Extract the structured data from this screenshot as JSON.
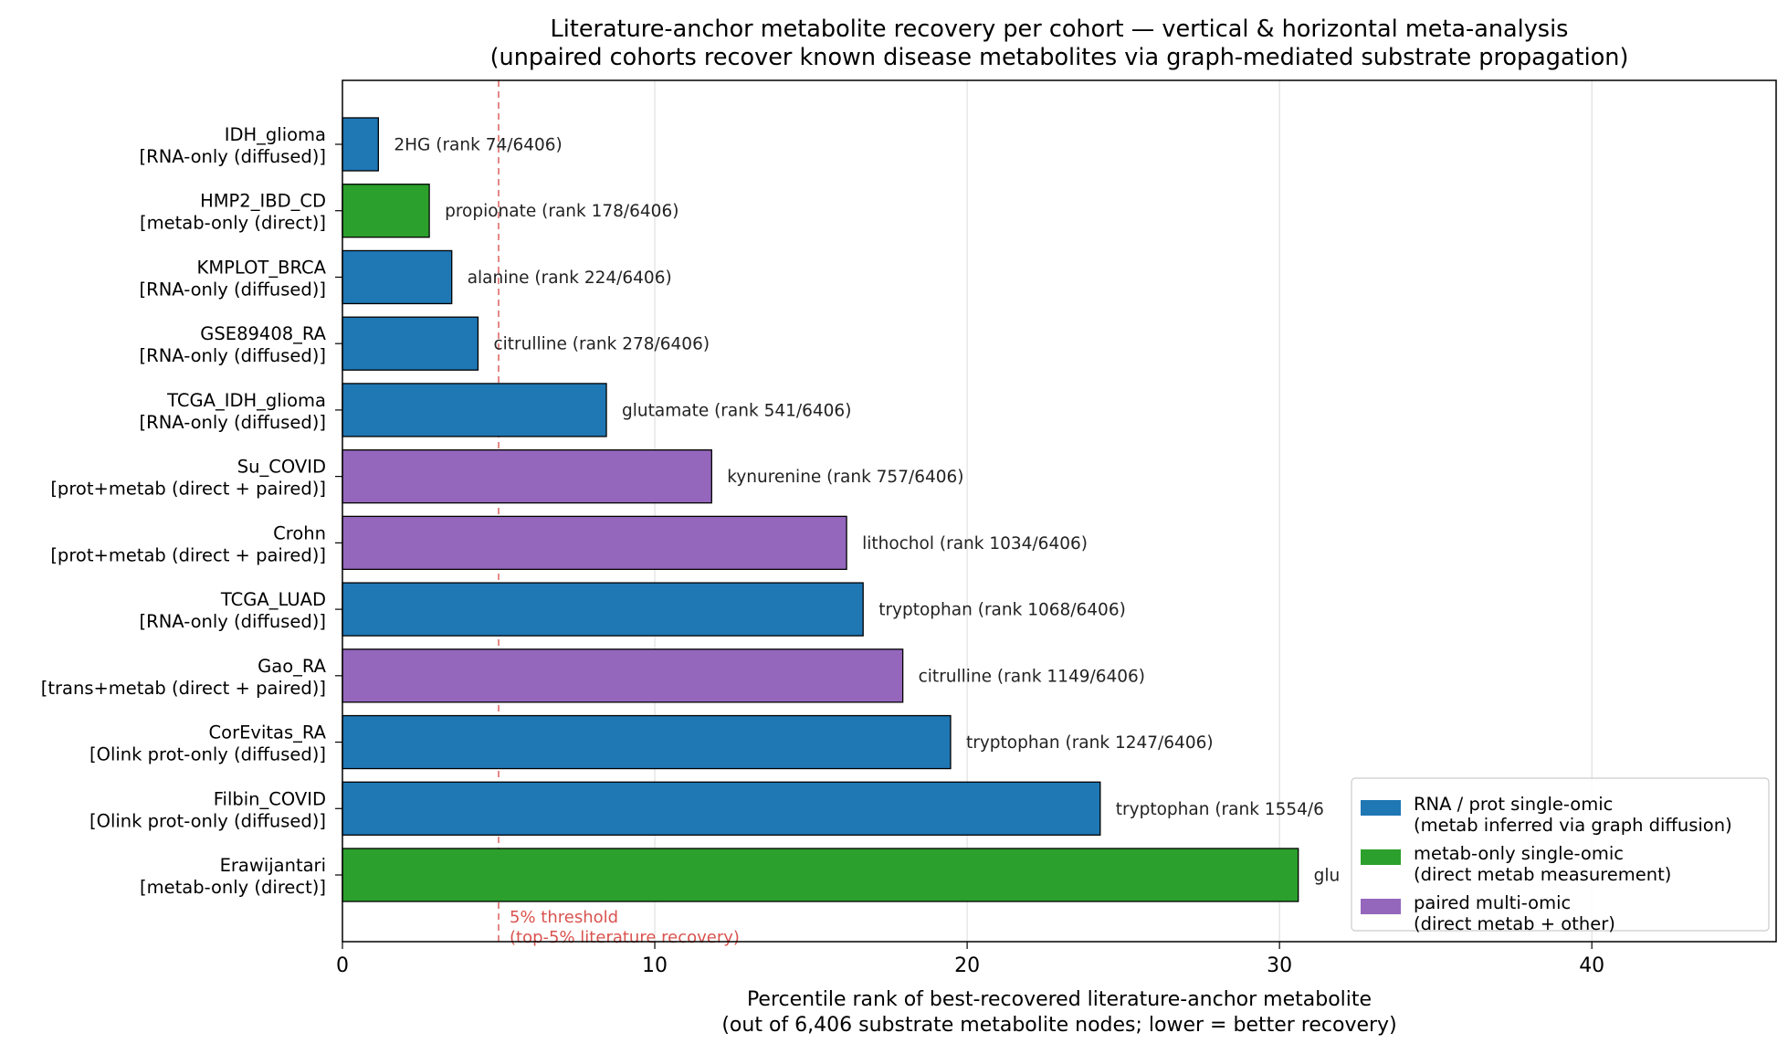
{
  "chart_data": {
    "type": "bar",
    "orientation": "horizontal",
    "title_lines": [
      "Literature-anchor metabolite recovery per cohort — vertical & horizontal meta-analysis",
      "(unpaired cohorts recover known disease metabolites via graph-mediated substrate propagation)"
    ],
    "xlabel_lines": [
      "Percentile rank of best-recovered literature-anchor metabolite",
      "(out of 6,406 substrate metabolite nodes; lower = better recovery)"
    ],
    "ylabel": "",
    "xlim": [
      0,
      45.9
    ],
    "xticks": [
      0,
      10,
      20,
      30,
      40
    ],
    "x_grid": true,
    "bars": [
      {
        "cohort": "IDH_glioma",
        "modality": "[RNA-only (diffused)]",
        "group": "rna_prot",
        "value": 1.15,
        "annotation": "2HG  (rank 74/6406)"
      },
      {
        "cohort": "HMP2_IBD_CD",
        "modality": "[metab-only (direct)]",
        "group": "metab",
        "value": 2.78,
        "annotation": "propionate  (rank 178/6406)"
      },
      {
        "cohort": "KMPLOT_BRCA",
        "modality": "[RNA-only (diffused)]",
        "group": "rna_prot",
        "value": 3.5,
        "annotation": "alanine  (rank 224/6406)"
      },
      {
        "cohort": "GSE89408_RA",
        "modality": "[RNA-only (diffused)]",
        "group": "rna_prot",
        "value": 4.34,
        "annotation": "citrulline  (rank 278/6406)"
      },
      {
        "cohort": "TCGA_IDH_glioma",
        "modality": "[RNA-only (diffused)]",
        "group": "rna_prot",
        "value": 8.45,
        "annotation": "glutamate  (rank 541/6406)"
      },
      {
        "cohort": "Su_COVID",
        "modality": "[prot+metab (direct + paired)]",
        "group": "paired",
        "value": 11.82,
        "annotation": "kynurenine  (rank 757/6406)"
      },
      {
        "cohort": "Crohn",
        "modality": "[prot+metab (direct + paired)]",
        "group": "paired",
        "value": 16.14,
        "annotation": "lithochol  (rank 1034/6406)"
      },
      {
        "cohort": "TCGA_LUAD",
        "modality": "[RNA-only (diffused)]",
        "group": "rna_prot",
        "value": 16.67,
        "annotation": "tryptophan  (rank 1068/6406)"
      },
      {
        "cohort": "Gao_RA",
        "modality": "[trans+metab (direct + paired)]",
        "group": "paired",
        "value": 17.94,
        "annotation": "citrulline  (rank 1149/6406)"
      },
      {
        "cohort": "CorEvitas_RA",
        "modality": "[Olink prot-only (diffused)]",
        "group": "rna_prot",
        "value": 19.47,
        "annotation": "tryptophan  (rank 1247/6406)"
      },
      {
        "cohort": "Filbin_COVID",
        "modality": "[Olink prot-only (diffused)]",
        "group": "rna_prot",
        "value": 24.26,
        "annotation": "tryptophan  (rank 1554/6"
      },
      {
        "cohort": "Erawijantari",
        "modality": "[metab-only (direct)]",
        "group": "metab",
        "value": 30.6,
        "annotation": "glu"
      }
    ],
    "threshold": {
      "value": 5,
      "label_lines": [
        "5% threshold",
        "(top-5% literature recovery)"
      ],
      "color": "#d9534f"
    },
    "legend": {
      "placement": "lower right",
      "entries": [
        {
          "group": "rna_prot",
          "color": "#1f77b4",
          "lines": [
            "RNA / prot single-omic",
            "(metab inferred via graph diffusion)"
          ]
        },
        {
          "group": "metab",
          "color": "#2ca02c",
          "lines": [
            "metab-only single-omic",
            "(direct metab measurement)"
          ]
        },
        {
          "group": "paired",
          "color": "#9467bd",
          "lines": [
            "paired multi-omic",
            "(direct metab + other)"
          ]
        }
      ]
    },
    "colors": {
      "rna_prot": "#1f77b4",
      "metab": "#2ca02c",
      "paired": "#9467bd",
      "edge": "#000000",
      "grid": "#e0e0e0"
    }
  }
}
